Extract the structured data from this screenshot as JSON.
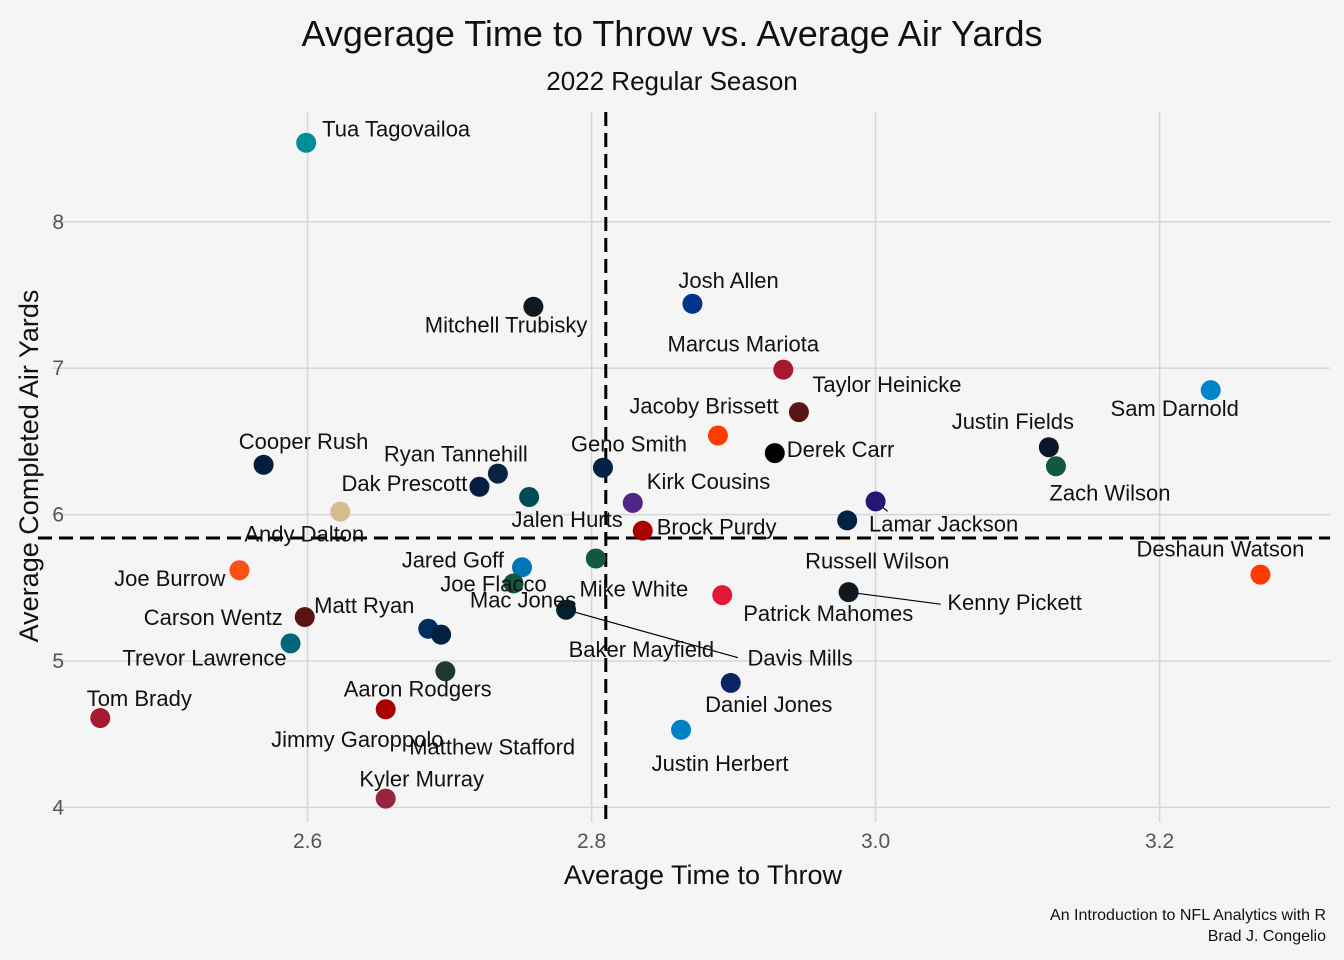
{
  "title": "Avgerage Time to Throw vs. Average Air Yards",
  "subtitle": "2022 Regular Season",
  "caption": [
    "An Introduction to NFL Analytics with R",
    "Brad J. Congelio"
  ],
  "chart_data": {
    "type": "scatter",
    "xlabel": "Average Time to Throw",
    "ylabel": "Average Completed Air Yards",
    "xlim": [
      2.42,
      3.32
    ],
    "ylim": [
      3.9,
      8.75
    ],
    "x_ticks": [
      "2.6",
      "2.8",
      "3.0",
      "3.2"
    ],
    "y_ticks": [
      "4",
      "5",
      "6",
      "7",
      "8"
    ],
    "grid": true,
    "reference_lines": {
      "x": 2.81,
      "y": 5.84
    },
    "points": [
      {
        "name": "Tua Tagovailoa",
        "x": 2.599,
        "y": 8.54,
        "color": "#008E97"
      },
      {
        "name": "Josh Allen",
        "x": 2.871,
        "y": 7.44,
        "color": "#00338D"
      },
      {
        "name": "Mitchell Trubisky",
        "x": 2.759,
        "y": 7.42,
        "color": "#101820"
      },
      {
        "name": "Marcus Mariota",
        "x": 2.935,
        "y": 6.99,
        "color": "#A71930"
      },
      {
        "name": "Sam Darnold",
        "x": 3.236,
        "y": 6.85,
        "color": "#0085CA"
      },
      {
        "name": "Taylor Heinicke",
        "x": 2.946,
        "y": 6.7,
        "color": "#5A1414"
      },
      {
        "name": "Jacoby Brissett",
        "x": 2.889,
        "y": 6.54,
        "color": "#FF3C00"
      },
      {
        "name": "Justin Fields",
        "x": 3.122,
        "y": 6.46,
        "color": "#0B162A"
      },
      {
        "name": "Derek Carr",
        "x": 2.929,
        "y": 6.42,
        "color": "#000000"
      },
      {
        "name": "Cooper Rush",
        "x": 2.569,
        "y": 6.34,
        "color": "#041E42"
      },
      {
        "name": "Zach Wilson",
        "x": 3.127,
        "y": 6.33,
        "color": "#125740"
      },
      {
        "name": "Geno Smith",
        "x": 2.808,
        "y": 6.32,
        "color": "#002244"
      },
      {
        "name": "Ryan Tannehill",
        "x": 2.734,
        "y": 6.28,
        "color": "#0C2340"
      },
      {
        "name": "Dak Prescott",
        "x": 2.721,
        "y": 6.19,
        "color": "#041E42"
      },
      {
        "name": "Jalen Hurts",
        "x": 2.756,
        "y": 6.12,
        "color": "#004C54"
      },
      {
        "name": "Lamar Jackson",
        "x": 3.0,
        "y": 6.09,
        "color": "#241773"
      },
      {
        "name": "Kirk Cousins",
        "x": 2.829,
        "y": 6.08,
        "color": "#4F2683"
      },
      {
        "name": "Andy Dalton",
        "x": 2.623,
        "y": 6.02,
        "color": "#D3BC8D"
      },
      {
        "name": "Russell Wilson",
        "x": 2.98,
        "y": 5.96,
        "color": "#002244"
      },
      {
        "name": "Brock Purdy",
        "x": 2.836,
        "y": 5.89,
        "color": "#AA0000"
      },
      {
        "name": "Mike White",
        "x": 2.803,
        "y": 5.7,
        "color": "#125740"
      },
      {
        "name": "Jared Goff",
        "x": 2.751,
        "y": 5.64,
        "color": "#0076B6"
      },
      {
        "name": "Joe Burrow",
        "x": 2.552,
        "y": 5.62,
        "color": "#FB4F14"
      },
      {
        "name": "Deshaun Watson",
        "x": 3.271,
        "y": 5.59,
        "color": "#FF3C00"
      },
      {
        "name": "Joe Flacco",
        "x": 2.745,
        "y": 5.53,
        "color": "#125740"
      },
      {
        "name": "Kenny Pickett",
        "x": 2.981,
        "y": 5.47,
        "color": "#101820"
      },
      {
        "name": "Patrick Mahomes",
        "x": 2.892,
        "y": 5.45,
        "color": "#E31837"
      },
      {
        "name": "Davis Mills",
        "x": 2.782,
        "y": 5.35,
        "color": "#03202F"
      },
      {
        "name": "Carson Wentz",
        "x": 2.598,
        "y": 5.3,
        "color": "#5A1414"
      },
      {
        "name": "Matt Ryan",
        "x": 2.685,
        "y": 5.22,
        "color": "#002C5F"
      },
      {
        "name": "Mac Jones",
        "x": 2.694,
        "y": 5.18,
        "color": "#002244"
      },
      {
        "name": "Trevor Lawrence",
        "x": 2.588,
        "y": 5.12,
        "color": "#006778"
      },
      {
        "name": "Baker Mayfield",
        "x": 2.697,
        "y": 4.93,
        "color": "#203731"
      },
      {
        "name": "Daniel Jones",
        "x": 2.898,
        "y": 4.85,
        "color": "#0B2265"
      },
      {
        "name": "Aaron Rodgers",
        "x": 2.655,
        "y": 4.67,
        "color": "#AA0000"
      },
      {
        "name": "Tom Brady",
        "x": 2.454,
        "y": 4.61,
        "color": "#A71930"
      },
      {
        "name": "Justin Herbert",
        "x": 2.863,
        "y": 4.53,
        "color": "#0080C6"
      },
      {
        "name": "Kyler Murray",
        "x": 2.655,
        "y": 4.06,
        "color": "#97233F"
      },
      {
        "name": "Jimmy Garoppolo",
        "x": 2.635,
        "y": 4.46,
        "color": "#AA0000",
        "hidden": true
      },
      {
        "name": "Matthew Stafford",
        "x": 2.73,
        "y": 4.41,
        "color": "#003594",
        "hidden": true
      }
    ]
  }
}
